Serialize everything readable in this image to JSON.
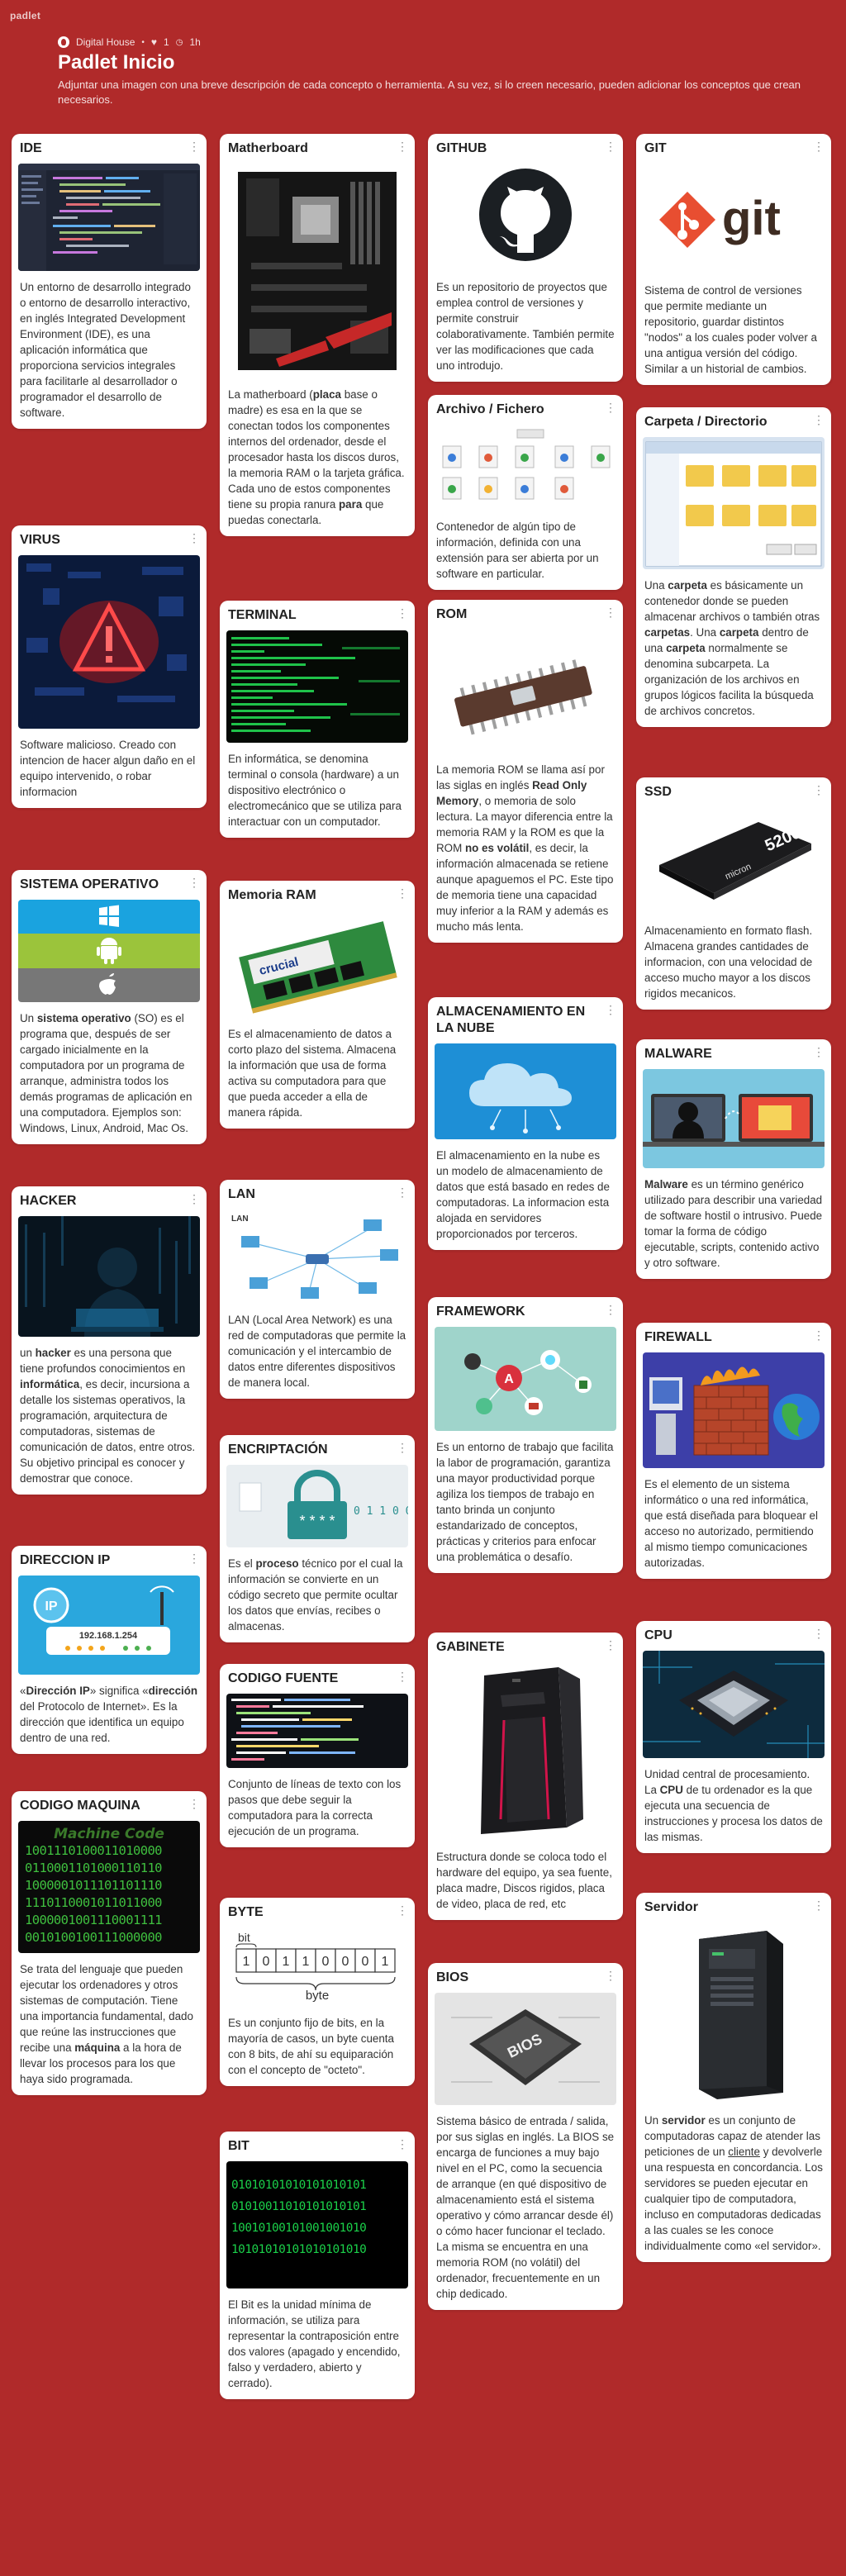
{
  "app": {
    "brand": "padlet"
  },
  "header": {
    "author": "Digital House",
    "likes": "1",
    "time": "1h",
    "title": "Padlet Inicio",
    "description": "Adjuntar una imagen con una breve descripción de cada concepto o herramienta. A su vez, si lo creen necesario, pueden adicionar los conceptos que crean necesarios."
  },
  "cards": {
    "ide": {
      "title": "IDE",
      "text": "Un entorno de desarrollo integrado o entorno de desarrollo interactivo, en inglés Integrated Development Environment (IDE), es una aplicación informática que proporciona servicios integrales para facilitarle al desarrollador o programador el desarrollo de software."
    },
    "virus": {
      "title": "VIRUS",
      "text": "Software malicioso. Creado con intencion de hacer algun daño en el equipo intervenido, o robar informacion"
    },
    "so": {
      "title": "SISTEMA OPERATIVO",
      "t1": "Un ",
      "b1": "sistema operativo",
      "t2": " (SO) es el programa que, después de ser cargado inicialmente en la computadora por un programa de arranque, administra todos los demás programas de aplicación en una computadora. Ejemplos son: Windows, Linux, Android, Mac Os."
    },
    "hacker": {
      "title": "HACKER",
      "t1": "un ",
      "b1": "hacker",
      "t2": " es una persona que tiene profundos conocimientos en ",
      "b2": "informática",
      "t3": ", es decir, incursiona a detalle los sistemas operativos, la programación, arquitectura de computadoras, sistemas de comunicación de datos, entre otros. Su objetivo principal es conocer y demostrar que conoce."
    },
    "ip": {
      "title": "DIRECCION IP",
      "t1": "«",
      "b1": "Dirección IP",
      "t2": "» significa «",
      "b2": "dirección",
      "t3": " del Protocolo de Internet». Es la dirección que identifica un equipo dentro de una red.",
      "img_text": "192.168.1.254",
      "img_badge": "IP"
    },
    "codigo_maquina": {
      "title": "CODIGO MAQUINA",
      "img_title": "Machine Code",
      "img_rows": [
        "1001110100011010000",
        "0110001101000110110",
        "1000001011101101110",
        "1110110001011011000",
        "1000001001110001111",
        "0010100100111000000"
      ],
      "t1": "Se trata del lenguaje que pueden ejecutar los ordenadores y otros sistemas de computación. Tiene una importancia fundamental, dado que reúne las instrucciones que recibe una ",
      "b1": "máquina",
      "t2": " a la hora de llevar los procesos para los que haya sido programada."
    },
    "mother": {
      "title": "Matherboard",
      "t1": "La matherboard (",
      "b1": "placa",
      "t2": " base o madre) es esa en la que se conectan todos los componentes internos del ordenador, desde el procesador hasta los discos duros, la memoria RAM o la tarjeta gráfica. Cada uno de estos componentes tiene su propia ranura ",
      "b2": "para",
      "t3": " que puedas conectarla."
    },
    "terminal": {
      "title": "TERMINAL",
      "text": "En informática, se denomina terminal o consola (hardware) a un dispositivo electrónico o electromecánico que se utiliza para interactuar con un computador."
    },
    "ram": {
      "title": "Memoria RAM",
      "text": "Es el almacenamiento de datos a corto plazo del sistema. Almacena la información que usa de forma activa su computadora para que que pueda acceder a ella de manera rápida.",
      "img_brand": "crucial"
    },
    "lan": {
      "title": "LAN",
      "img_label": "LAN",
      "text": "LAN (Local Area Network) es una red de computadoras que permite la comunicación y el intercambio de datos entre diferentes dispositivos de manera local."
    },
    "encriptacion": {
      "title": "ENCRIPTACIÓN",
      "t1": "Es el ",
      "b1": "proceso",
      "t2": " técnico por el cual la información se convierte en un código secreto que permite ocultar los datos que envías, recibes o almacenas.",
      "img_bits": "0 1 1 0 0 1 1"
    },
    "codigo_fuente": {
      "title": "CODIGO FUENTE",
      "text": "Conjunto de líneas de texto con los pasos que debe seguir la computadora para la correcta ejecución de un programa."
    },
    "byte": {
      "title": "BYTE",
      "img_bit": "bit",
      "img_bits": [
        "1",
        "0",
        "1",
        "1",
        "0",
        "0",
        "0",
        "1"
      ],
      "img_byte": "byte",
      "text": "Es un conjunto fijo de bits, en la mayoría de casos, un byte cuenta con 8 bits, de ahí su equiparación con el concepto de \"octeto\"."
    },
    "bit": {
      "title": "BIT",
      "img_rows": [
        "01010101010101010101",
        "01010011010101010101",
        "10010100101001001010",
        "10101010101010101010"
      ],
      "text": "El Bit es la unidad mínima de información,  se utiliza para representar la contraposición entre dos valores (apagado y encendido, falso y verdadero, abierto y cerrado)."
    },
    "github": {
      "title": "GITHUB",
      "text": "Es un repositorio de proyectos que emplea control de versiones y permite construir colaborativamente. También permite ver las modificaciones que cada uno introdujo."
    },
    "archivo": {
      "title": "Archivo / Fichero",
      "text": "Contenedor de algún tipo de información, definida con una extensión para ser abierta por un software en particular."
    },
    "rom": {
      "title": "ROM",
      "t1": "La memoria ROM se llama así por las siglas en inglés ",
      "b1": "Read Only Memory",
      "t2": ", o memoria de solo lectura. La mayor diferencia entre la memoria RAM y la ROM es que la ROM ",
      "b2": "no es volátil",
      "t3": ", es decir, la información almacenada se retiene aunque apaguemos el PC. Este tipo de memoria tiene una capacidad muy inferior a la RAM y además es mucho más lenta."
    },
    "nube": {
      "title": "ALMACENAMIENTO EN LA NUBE",
      "text": "El almacenamiento en la nube es un modelo de almacenamiento de datos que está basado en redes de computadoras. La informacion esta alojada en servidores proporcionados por terceros."
    },
    "framework": {
      "title": "FRAMEWORK",
      "text": "Es un entorno de trabajo que facilita la labor de programación, garantiza una mayor productividad porque agiliza los tiempos de trabajo en tanto brinda un conjunto estandarizado de conceptos, prácticas y criterios para enfocar una problemática o desafío."
    },
    "gabinete": {
      "title": "GABINETE",
      "text": "Estructura donde se coloca todo el hardware del equipo, ya sea fuente, placa madre, Discos rigidos, placa de video, placa de red, etc"
    },
    "bios": {
      "title": "BIOS",
      "img_label": "BIOS",
      "text": "Sistema básico de entrada / salida, por sus siglas en inglés. La BIOS se encarga de funciones a muy bajo nivel en el PC, como la secuencia de arranque (en qué dispositivo de almacenamiento está el sistema operativo y cómo arrancar desde él) o cómo hacer funcionar el teclado. La misma se encuentra en una memoria ROM (no volátil) del ordenador, frecuentemente en un chip dedicado."
    },
    "git": {
      "title": "GIT",
      "img_label": "git",
      "text": "Sistema de control de versiones que permite mediante un repositorio, guardar distintos \"nodos\" a los cuales poder volver a una antigua versión del código. Similar a un historial de cambios."
    },
    "carpeta": {
      "title": "Carpeta / Directorio",
      "t1": "Una ",
      "b1": "carpeta",
      "t2": " es básicamente un contenedor donde se pueden almacenar archivos o también otras ",
      "b2": "carpetas",
      "t3": ". Una ",
      "b3": "carpeta",
      "t4": " dentro de una ",
      "b4": "carpeta",
      "t5": " normalmente se denomina subcarpeta. La organización de los archivos en grupos lógicos facilita la búsqueda de archivos concretos."
    },
    "ssd": {
      "title": "SSD",
      "img_label": "5200",
      "img_brand": "micron",
      "text": "Almacenamiento en formato flash. Almacena grandes cantidades de informacion, con una velocidad de acceso mucho mayor a los discos rigidos mecanicos."
    },
    "malware": {
      "title": "MALWARE",
      "b1": "Malware",
      "t1": " es un término genérico utilizado para describir una variedad de software hostil o intrusivo. Puede tomar la forma de código ejecutable, scripts, contenido activo y otro software."
    },
    "firewall": {
      "title": "FIREWALL",
      "text": "Es el elemento de un sistema informático o una red informática, que está diseñada para bloquear el acceso no autorizado, permitiendo al mismo tiempo comunicaciones autorizadas."
    },
    "cpu": {
      "title": "CPU",
      "t1": "Unidad central de procesamiento. La ",
      "b1": "CPU",
      "t2": " de tu ordenador es la que ejecuta una secuencia de instrucciones y procesa los datos de las mismas."
    },
    "servidor": {
      "title": "Servidor",
      "t1": "Un ",
      "b1": "servidor",
      "t2": " es un conjunto de computadoras capaz de atender las peticiones de un ",
      "u1": "cliente",
      "t3": " y devolverle una respuesta en concordancia. Los servidores se pueden ejecutar en cualquier tipo de computadora, incluso en computadoras dedicadas a las cuales se les conoce individualmente como «el servidor»."
    }
  }
}
